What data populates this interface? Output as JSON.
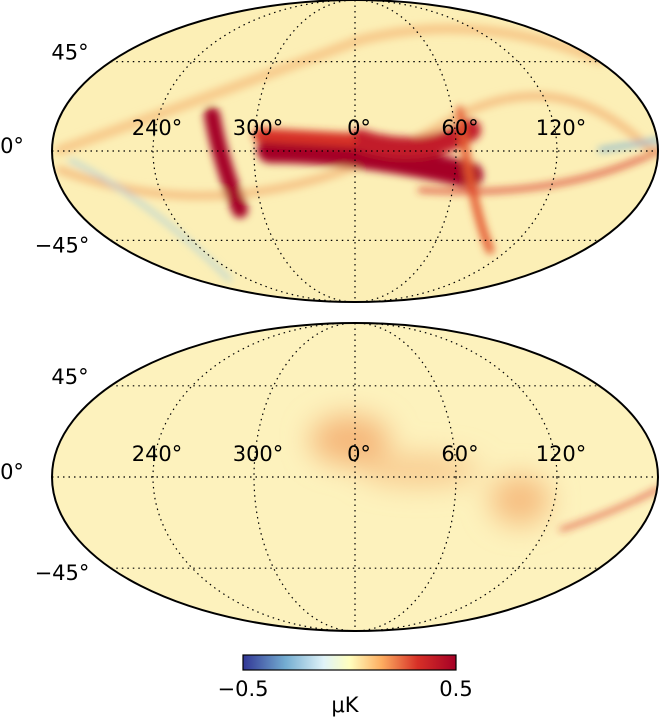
{
  "maps": [
    {
      "lat_labels": [
        "45°",
        "0°",
        "−45°"
      ],
      "lon_labels": [
        "120°",
        "60°",
        "0°",
        "300°",
        "240°"
      ]
    },
    {
      "lat_labels": [
        "45°",
        "0°",
        "−45°"
      ],
      "lon_labels": [
        "120°",
        "60°",
        "0°",
        "300°",
        "240°"
      ]
    }
  ],
  "colorbar": {
    "label": "μK",
    "lim": [
      -0.5,
      0.5
    ],
    "ticks": [
      {
        "value": -0.5,
        "label": "−0.5"
      },
      {
        "value": 0.5,
        "label": "0.5"
      }
    ]
  }
}
